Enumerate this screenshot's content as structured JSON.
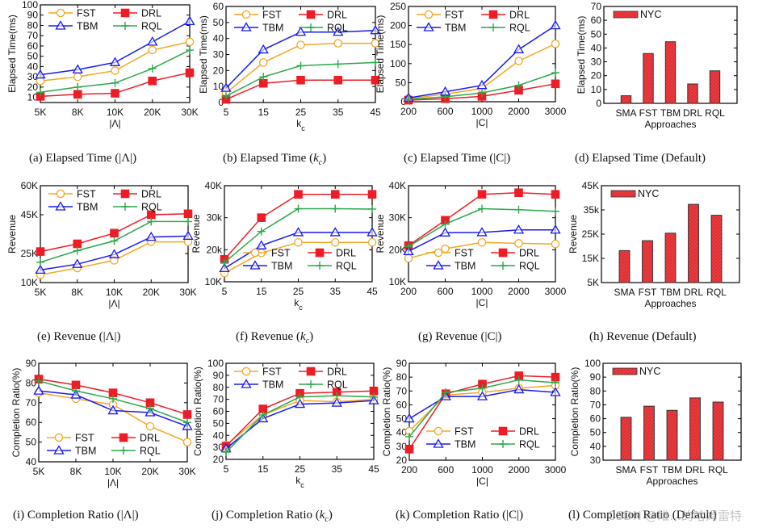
{
  "series_style": {
    "FST": {
      "color": "#f5a623",
      "marker": "circle"
    },
    "DRL": {
      "color": "#ee1c25",
      "marker": "square"
    },
    "TBM": {
      "color": "#1a1aee",
      "marker": "triangle"
    },
    "RQL": {
      "color": "#2ca84a",
      "marker": "plus"
    },
    "NYC": {
      "color": "#ee3a3e",
      "marker": "hatched-bar"
    }
  },
  "chart_data": [
    {
      "id": "a",
      "type": "line",
      "caption": "(a)  Elapsed Time (|Λ|)",
      "xlabel": "|Λ|",
      "ylabel": "Elapsed Time(ms)",
      "categories": [
        "5K",
        "8K",
        "10K",
        "20K",
        "30K"
      ],
      "ylim": [
        5,
        100
      ],
      "yticks": [
        10,
        20,
        30,
        40,
        50,
        60,
        70,
        80,
        90,
        100
      ],
      "ytick_labels": [
        "10",
        "20",
        "30",
        "40",
        "50",
        "60",
        "70",
        "80",
        "90",
        "100"
      ],
      "legend": "top-left",
      "series": [
        {
          "name": "FST",
          "values": [
            26,
            30,
            36,
            56,
            64
          ]
        },
        {
          "name": "DRL",
          "values": [
            11,
            13,
            14,
            26,
            34
          ]
        },
        {
          "name": "TBM",
          "values": [
            32,
            37,
            44,
            64,
            84
          ]
        },
        {
          "name": "RQL",
          "values": [
            15,
            20,
            24,
            38,
            56
          ]
        }
      ]
    },
    {
      "id": "b",
      "type": "line",
      "caption": "(b)  Elapsed Time (k_c)",
      "xlabel": "k_c",
      "ylabel": "Elapsed Time(ms)",
      "categories": [
        "5",
        "15",
        "25",
        "35",
        "45"
      ],
      "ylim": [
        0,
        60
      ],
      "yticks": [
        0,
        10,
        20,
        30,
        40,
        50,
        60
      ],
      "ytick_labels": [
        "0",
        "10",
        "20",
        "30",
        "40",
        "50",
        "60"
      ],
      "legend": "top-left",
      "series": [
        {
          "name": "FST",
          "values": [
            6,
            25,
            36,
            37,
            37
          ]
        },
        {
          "name": "DRL",
          "values": [
            2,
            12,
            14,
            14,
            14
          ]
        },
        {
          "name": "TBM",
          "values": [
            9,
            33,
            44,
            44,
            45
          ]
        },
        {
          "name": "RQL",
          "values": [
            4,
            16,
            23,
            24,
            25
          ]
        }
      ]
    },
    {
      "id": "c",
      "type": "line",
      "caption": "(c)  Elapsed Time (|C|)",
      "xlabel": "|C|",
      "ylabel": "Elapsed Time(ms)",
      "categories": [
        "200",
        "600",
        "1000",
        "2000",
        "3000"
      ],
      "ylim": [
        0,
        250
      ],
      "yticks": [
        0,
        50,
        100,
        150,
        200,
        250
      ],
      "ytick_labels": [
        "0",
        "50",
        "100",
        "150",
        "200",
        "250"
      ],
      "legend": "top-left",
      "series": [
        {
          "name": "FST",
          "values": [
            8,
            20,
            35,
            107,
            152
          ]
        },
        {
          "name": "DRL",
          "values": [
            4,
            8,
            14,
            30,
            47
          ]
        },
        {
          "name": "TBM",
          "values": [
            10,
            26,
            43,
            137,
            200
          ]
        },
        {
          "name": "RQL",
          "values": [
            6,
            13,
            23,
            43,
            76
          ]
        }
      ]
    },
    {
      "id": "d",
      "type": "bar",
      "caption": "(d)  Elapsed Time (Default)",
      "xlabel": "Approaches",
      "ylabel": "Elapsed Time(ms)",
      "categories": [
        "SMA",
        "FST",
        "TBM",
        "DRL",
        "RQL"
      ],
      "ylim": [
        0,
        70
      ],
      "yticks": [
        0,
        10,
        20,
        30,
        40,
        50,
        60,
        70
      ],
      "ytick_labels": [
        "0",
        "10",
        "20",
        "30",
        "40",
        "50",
        "60",
        "70"
      ],
      "legend": "top-left",
      "series": [
        {
          "name": "NYC",
          "values": [
            5.5,
            36,
            44.5,
            14,
            23.5
          ]
        }
      ]
    },
    {
      "id": "e",
      "type": "line",
      "caption": "(e)  Revenue (|Λ|)",
      "xlabel": "|Λ|",
      "ylabel": "Revenue",
      "categories": [
        "5K",
        "8K",
        "10K",
        "20K",
        "30K"
      ],
      "ylim": [
        10000,
        60000
      ],
      "yticks": [
        10000,
        25000,
        45000,
        60000
      ],
      "ytick_labels": [
        "10K",
        "25K",
        "45K",
        "60K"
      ],
      "legend": "top-left",
      "series": [
        {
          "name": "FST",
          "values": [
            14000,
            17500,
            21500,
            31000,
            31000
          ]
        },
        {
          "name": "DRL",
          "values": [
            26000,
            30000,
            35500,
            45000,
            45500
          ]
        },
        {
          "name": "TBM",
          "values": [
            16500,
            19500,
            24500,
            33500,
            34000
          ]
        },
        {
          "name": "RQL",
          "values": [
            20500,
            26500,
            31500,
            41500,
            41500
          ]
        }
      ]
    },
    {
      "id": "f",
      "type": "line",
      "caption": "(f)  Revenue (k_c)",
      "xlabel": "k_c",
      "ylabel": "Revenue",
      "categories": [
        "5",
        "15",
        "25",
        "35",
        "45"
      ],
      "ylim": [
        10000,
        40000
      ],
      "yticks": [
        10000,
        20000,
        30000,
        40000
      ],
      "ytick_labels": [
        "10K",
        "20k",
        "30k",
        "40K"
      ],
      "legend": "bottom-right",
      "series": [
        {
          "name": "FST",
          "values": [
            12700,
            19000,
            22300,
            22300,
            22300
          ]
        },
        {
          "name": "DRL",
          "values": [
            17000,
            30000,
            37300,
            37300,
            37300
          ]
        },
        {
          "name": "TBM",
          "values": [
            14200,
            21300,
            25400,
            25400,
            25400
          ]
        },
        {
          "name": "RQL",
          "values": [
            16000,
            25700,
            32800,
            32800,
            32700
          ]
        }
      ]
    },
    {
      "id": "g",
      "type": "line",
      "caption": "(g)  Revenue (|C|)",
      "xlabel": "|C|",
      "ylabel": "Revenue",
      "categories": [
        "200",
        "600",
        "1000",
        "2000",
        "3000"
      ],
      "ylim": [
        10000,
        40000
      ],
      "yticks": [
        10000,
        20000,
        30000,
        40000
      ],
      "ytick_labels": [
        "10K",
        "20K",
        "30K",
        "40K"
      ],
      "legend": "bottom-right",
      "series": [
        {
          "name": "FST",
          "values": [
            17300,
            20300,
            22300,
            22000,
            21800
          ]
        },
        {
          "name": "DRL",
          "values": [
            21300,
            29200,
            37300,
            37800,
            37300
          ]
        },
        {
          "name": "TBM",
          "values": [
            19500,
            25300,
            25400,
            26200,
            26200
          ]
        },
        {
          "name": "RQL",
          "values": [
            21000,
            28000,
            32800,
            32500,
            32000
          ]
        }
      ]
    },
    {
      "id": "h",
      "type": "bar",
      "caption": "(h)  Revenue (Default)",
      "xlabel": "Approaches",
      "ylabel": "Revenue",
      "categories": [
        "SMA",
        "FST",
        "TBM",
        "DRL",
        "RQL"
      ],
      "ylim": [
        5000,
        45000
      ],
      "yticks": [
        5000,
        15000,
        25000,
        35000,
        45000
      ],
      "ytick_labels": [
        "5K",
        "15K",
        "25K",
        "35k",
        "45K"
      ],
      "legend": "top-left",
      "series": [
        {
          "name": "NYC",
          "values": [
            18200,
            22300,
            25400,
            37300,
            32800
          ]
        }
      ]
    },
    {
      "id": "i",
      "type": "line",
      "caption": "(i)  Completion Ratio (|Λ|)",
      "xlabel": "|Λ|",
      "ylabel": "Completion Ratio(%)",
      "categories": [
        "5K",
        "8K",
        "10K",
        "20K",
        "30K"
      ],
      "ylim": [
        40,
        90
      ],
      "yticks": [
        40,
        50,
        60,
        70,
        80,
        90
      ],
      "ytick_labels": [
        "40",
        "50",
        "60",
        "70",
        "80",
        "90"
      ],
      "legend": "bottom-left",
      "series": [
        {
          "name": "FST",
          "values": [
            75,
            72,
            69,
            58,
            50
          ]
        },
        {
          "name": "DRL",
          "values": [
            82,
            79,
            75,
            70,
            64
          ]
        },
        {
          "name": "TBM",
          "values": [
            76,
            74,
            66,
            65,
            58
          ]
        },
        {
          "name": "RQL",
          "values": [
            81,
            76,
            72,
            67,
            60
          ]
        }
      ]
    },
    {
      "id": "j",
      "type": "line",
      "caption": "(j)  Completion Ratio (k_c)",
      "xlabel": "k_c",
      "ylabel": "Completion Ratio(%)",
      "categories": [
        "5",
        "15",
        "25",
        "35",
        "45"
      ],
      "ylim": [
        20,
        100
      ],
      "yticks": [
        20,
        30,
        40,
        50,
        60,
        70,
        80,
        90,
        100
      ],
      "ytick_labels": [
        "20",
        "30",
        "40",
        "50",
        "60",
        "70",
        "80",
        "90",
        "100"
      ],
      "legend": "top-left",
      "series": [
        {
          "name": "FST",
          "values": [
            32,
            57,
            69,
            68,
            70
          ]
        },
        {
          "name": "DRL",
          "values": [
            31,
            62,
            75,
            76,
            77
          ]
        },
        {
          "name": "TBM",
          "values": [
            29,
            54,
            66,
            67,
            69
          ]
        },
        {
          "name": "RQL",
          "values": [
            26,
            57,
            72,
            73,
            72
          ]
        }
      ]
    },
    {
      "id": "k",
      "type": "line",
      "caption": "(k)  Completion Ratio (|C|)",
      "xlabel": "|C|",
      "ylabel": "Completion Ratio(%)",
      "categories": [
        "200",
        "600",
        "1000",
        "2000",
        "3000"
      ],
      "ylim": [
        20,
        90
      ],
      "yticks": [
        20,
        30,
        40,
        50,
        60,
        70,
        80,
        90
      ],
      "ytick_labels": [
        "20",
        "30",
        "40",
        "50",
        "60",
        "70",
        "80",
        "90"
      ],
      "legend": "bottom-right",
      "series": [
        {
          "name": "FST",
          "values": [
            41,
            67,
            69,
            72,
            74
          ]
        },
        {
          "name": "DRL",
          "values": [
            28,
            68,
            75,
            81,
            80
          ]
        },
        {
          "name": "TBM",
          "values": [
            50,
            66,
            66,
            71,
            69
          ]
        },
        {
          "name": "RQL",
          "values": [
            37,
            69,
            72,
            78,
            76
          ]
        }
      ]
    },
    {
      "id": "l",
      "type": "bar",
      "caption": "(l)  Completion Ratio (Default)",
      "xlabel": "Approaches",
      "ylabel": "Completion Ratio(%)",
      "categories": [
        "SMA",
        "FST",
        "TBM",
        "DRL",
        "RQL"
      ],
      "ylim": [
        30,
        100
      ],
      "yticks": [
        30,
        40,
        50,
        60,
        70,
        80,
        90,
        100
      ],
      "ytick_labels": [
        "30",
        "40",
        "50",
        "60",
        "70",
        "80",
        "90",
        "100"
      ],
      "legend": "top-left",
      "series": [
        {
          "name": "NYC",
          "values": [
            61,
            69,
            66,
            75,
            72
          ]
        }
      ]
    }
  ],
  "watermark": "CSDN @睢...的哈姆雷特"
}
